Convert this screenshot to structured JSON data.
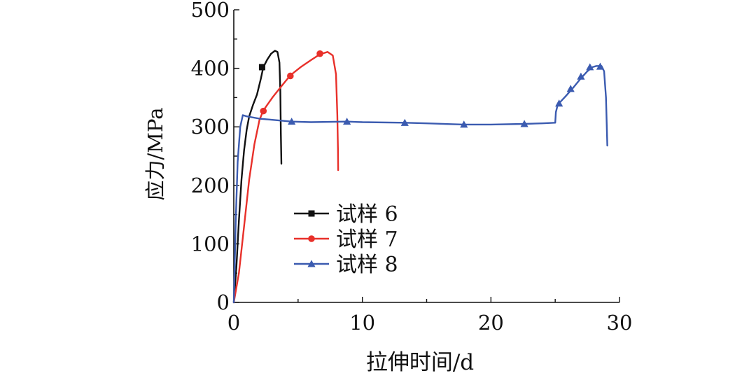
{
  "chart_data": {
    "type": "line",
    "title": "",
    "xlabel": "拉伸时间/d",
    "ylabel": "应力/MPa",
    "xlim": [
      0,
      30
    ],
    "ylim": [
      0,
      500
    ],
    "x_ticks": [
      0,
      10,
      20,
      30
    ],
    "y_ticks": [
      0,
      100,
      200,
      300,
      400,
      500
    ],
    "x_tick_labels": [
      "0",
      "10",
      "20",
      "30"
    ],
    "y_tick_labels": [
      "0",
      "100",
      "200",
      "300",
      "400",
      "500"
    ],
    "grid": false,
    "legend_position": "center-left",
    "series": [
      {
        "name": "试样 6",
        "color": "#111111",
        "marker": "square",
        "points": [
          [
            0.0,
            0
          ],
          [
            0.2,
            60
          ],
          [
            0.4,
            140
          ],
          [
            0.6,
            210
          ],
          [
            0.8,
            260
          ],
          [
            1.0,
            295
          ],
          [
            1.2,
            318
          ],
          [
            1.5,
            338
          ],
          [
            1.8,
            355
          ],
          [
            2.1,
            382
          ],
          [
            2.3,
            402
          ],
          [
            2.6,
            415
          ],
          [
            2.9,
            425
          ],
          [
            3.2,
            430
          ],
          [
            3.4,
            428
          ],
          [
            3.55,
            410
          ],
          [
            3.62,
            360
          ],
          [
            3.66,
            290
          ],
          [
            3.7,
            237
          ]
        ],
        "markers": [
          [
            2.2,
            402
          ]
        ]
      },
      {
        "name": "试样 7",
        "color": "#e8302a",
        "marker": "circle",
        "points": [
          [
            0.0,
            0
          ],
          [
            0.4,
            50
          ],
          [
            0.8,
            130
          ],
          [
            1.2,
            210
          ],
          [
            1.6,
            270
          ],
          [
            2.0,
            312
          ],
          [
            2.3,
            328
          ],
          [
            3.0,
            350
          ],
          [
            3.8,
            372
          ],
          [
            4.4,
            388
          ],
          [
            5.2,
            402
          ],
          [
            6.0,
            414
          ],
          [
            6.7,
            424
          ],
          [
            7.3,
            428
          ],
          [
            7.7,
            422
          ],
          [
            7.95,
            390
          ],
          [
            8.05,
            320
          ],
          [
            8.1,
            262
          ],
          [
            8.12,
            226
          ]
        ],
        "markers": [
          [
            2.3,
            327
          ],
          [
            4.4,
            387
          ],
          [
            6.7,
            425
          ]
        ]
      },
      {
        "name": "试样 8",
        "color": "#3b5bb0",
        "marker": "triangle",
        "points": [
          [
            0.0,
            0
          ],
          [
            0.15,
            140
          ],
          [
            0.3,
            240
          ],
          [
            0.5,
            300
          ],
          [
            0.7,
            320
          ],
          [
            1.0,
            318
          ],
          [
            2.0,
            314
          ],
          [
            3.0,
            312
          ],
          [
            4.5,
            309
          ],
          [
            6.0,
            308
          ],
          [
            8.8,
            309
          ],
          [
            10.0,
            308
          ],
          [
            13.3,
            307
          ],
          [
            15.0,
            306
          ],
          [
            17.9,
            304
          ],
          [
            20.0,
            304
          ],
          [
            22.6,
            305
          ],
          [
            24.0,
            306
          ],
          [
            25.0,
            307
          ],
          [
            25.05,
            325
          ],
          [
            25.2,
            338
          ],
          [
            25.8,
            352
          ],
          [
            26.4,
            367
          ],
          [
            27.0,
            383
          ],
          [
            27.5,
            395
          ],
          [
            27.9,
            402
          ],
          [
            28.2,
            404
          ],
          [
            28.6,
            404
          ],
          [
            28.8,
            395
          ],
          [
            28.95,
            350
          ],
          [
            29.05,
            268
          ]
        ],
        "markers": [
          [
            4.5,
            309
          ],
          [
            8.8,
            309
          ],
          [
            13.3,
            307
          ],
          [
            17.9,
            304
          ],
          [
            22.6,
            305
          ],
          [
            25.3,
            340
          ],
          [
            26.2,
            365
          ],
          [
            27.0,
            386
          ],
          [
            27.7,
            402
          ],
          [
            28.5,
            403
          ]
        ]
      }
    ]
  }
}
